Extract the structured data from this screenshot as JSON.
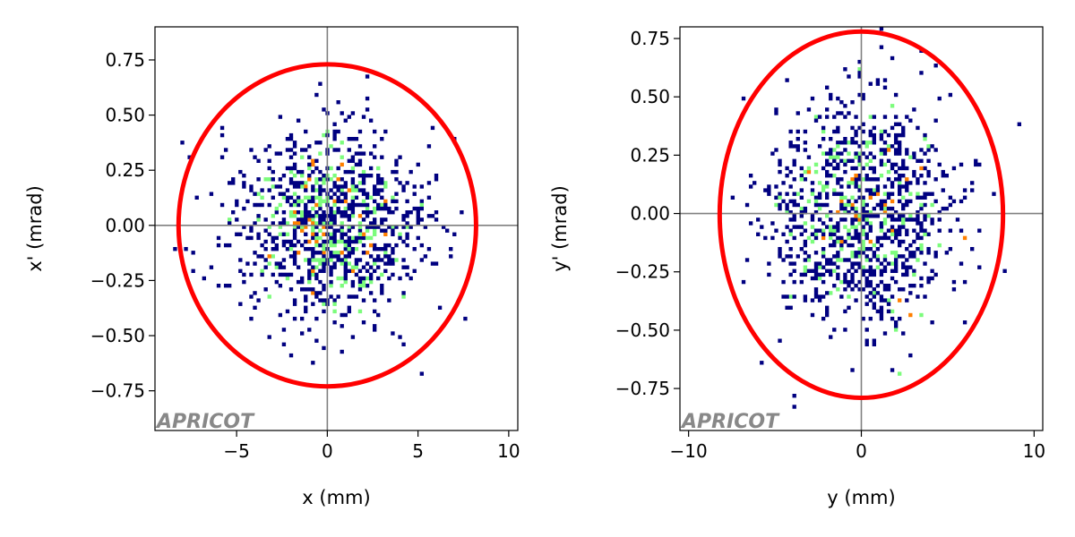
{
  "chart_data": [
    {
      "type": "heatmap",
      "panel": "left",
      "title": "",
      "xlabel": "x (mm)",
      "ylabel": "x' (mrad)",
      "xlim": [
        -9.5,
        10.5
      ],
      "ylim": [
        -0.93,
        0.9
      ],
      "xticks": [
        -5,
        0,
        5,
        10
      ],
      "xtick_labels": [
        "−5",
        "0",
        "5",
        "10"
      ],
      "yticks": [
        0.75,
        0.5,
        0.25,
        0.0,
        -0.25,
        -0.5,
        -0.75
      ],
      "ytick_labels": [
        "0.75",
        "0.50",
        "0.25",
        "0.00",
        "−0.25",
        "−0.50",
        "−0.75"
      ],
      "crosshair": {
        "x": 0,
        "y": 0
      },
      "distribution": {
        "center": [
          0,
          0
        ],
        "sigma": [
          2.6,
          0.22
        ],
        "count": 1100
      },
      "ellipse": {
        "center": [
          0,
          0
        ],
        "semi_axes": [
          8.2,
          0.73
        ],
        "color": "#ff0000"
      },
      "watermark": "APRICOT"
    },
    {
      "type": "heatmap",
      "panel": "right",
      "title": "",
      "xlabel": "y (mm)",
      "ylabel": "y' (mrad)",
      "xlim": [
        -10.5,
        10.5
      ],
      "ylim": [
        -0.93,
        0.8
      ],
      "xticks": [
        -10,
        0,
        10
      ],
      "xtick_labels": [
        "−10",
        "0",
        "10"
      ],
      "yticks": [
        0.75,
        0.5,
        0.25,
        0.0,
        -0.25,
        -0.5,
        -0.75
      ],
      "ytick_labels": [
        "0.75",
        "0.50",
        "0.25",
        "0.00",
        "−0.25",
        "−0.50",
        "−0.75"
      ],
      "crosshair": {
        "x": 0,
        "y": 0
      },
      "distribution": {
        "center": [
          0,
          0
        ],
        "sigma": [
          2.7,
          0.24
        ],
        "count": 1100
      },
      "ellipse": {
        "center": [
          0,
          -0.005
        ],
        "semi_axes": [
          8.2,
          0.785
        ],
        "color": "#ff0000"
      },
      "watermark": "APRICOT"
    }
  ],
  "colors": {
    "density_low": "#000080",
    "density_mid": "#7cfc7c",
    "density_high": "#ff7f00",
    "crosshair": "#808080",
    "ellipse": "#ff0000"
  }
}
